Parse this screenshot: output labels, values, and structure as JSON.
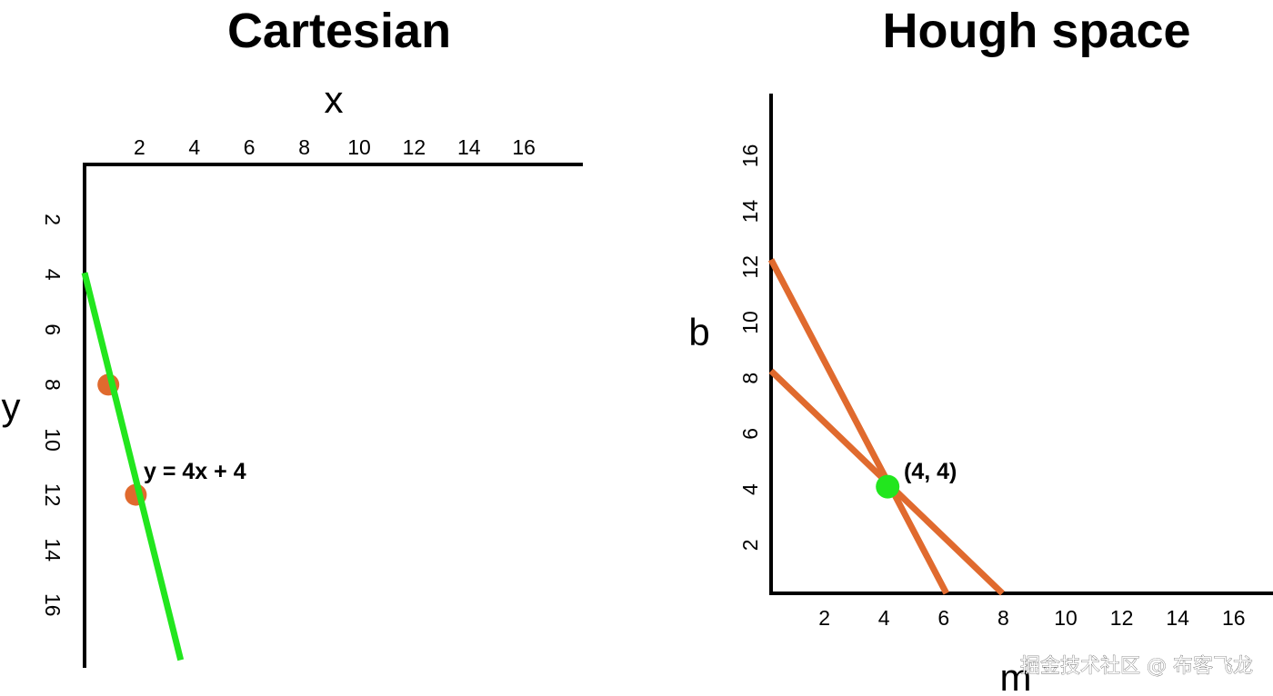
{
  "colors": {
    "line_green": "#22e61e",
    "point_orange": "#e06a2e",
    "axis": "#000000"
  },
  "cartesian": {
    "title": "Cartesian",
    "x_label": "x",
    "y_label": "y",
    "x_ticks": [
      "2",
      "4",
      "6",
      "8",
      "10",
      "12",
      "14",
      "16"
    ],
    "y_ticks": [
      "2",
      "4",
      "6",
      "8",
      "10",
      "12",
      "14",
      "16"
    ],
    "equation": "y = 4x + 4",
    "line": {
      "slope": 4,
      "intercept": 4
    },
    "points": [
      {
        "x": 1,
        "y": 8
      },
      {
        "x": 2,
        "y": 12
      }
    ]
  },
  "hough": {
    "title": "Hough space",
    "x_label": "m",
    "y_label": "b",
    "x_ticks": [
      "2",
      "4",
      "6",
      "8",
      "10",
      "12",
      "14",
      "16"
    ],
    "y_ticks": [
      "2",
      "4",
      "6",
      "8",
      "10",
      "12",
      "14",
      "16"
    ],
    "lines": [
      {
        "b0": 12,
        "m0": 6
      },
      {
        "b0": 8,
        "m0": 8
      }
    ],
    "intersection": {
      "m": 4,
      "b": 4
    },
    "intersection_label": "(4, 4)"
  },
  "watermark": "掘金技术社区 @ 布客飞龙"
}
